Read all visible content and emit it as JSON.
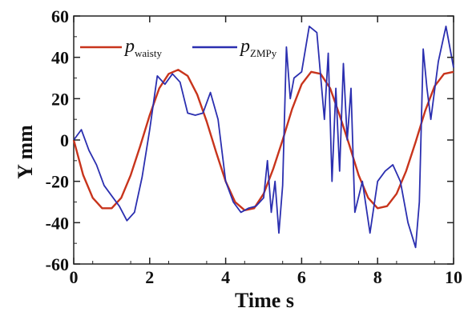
{
  "chart_data": {
    "type": "line",
    "xlabel": "Time  s",
    "ylabel": "Y  mm",
    "xlim": [
      0,
      10
    ],
    "ylim": [
      -60,
      60
    ],
    "xticks": [
      "0",
      "2",
      "4",
      "6",
      "8",
      "10"
    ],
    "yticks": [
      "60",
      "40",
      "20",
      "0",
      "-20",
      "-40",
      "-60"
    ],
    "grid": false,
    "legend_position": "top-left",
    "legend": [
      {
        "main": "p",
        "sub": "waisty",
        "color": "#c8341c"
      },
      {
        "main": "p",
        "sub": "ZMPy",
        "color": "#2b2fb0"
      }
    ],
    "series": [
      {
        "name": "p waisty",
        "color": "#c8341c",
        "x": [
          0,
          0.25,
          0.5,
          0.75,
          1.0,
          1.25,
          1.5,
          1.75,
          2.0,
          2.25,
          2.5,
          2.75,
          3.0,
          3.25,
          3.5,
          3.75,
          4.0,
          4.25,
          4.5,
          4.75,
          5.0,
          5.25,
          5.5,
          5.75,
          6.0,
          6.25,
          6.5,
          6.75,
          7.0,
          7.25,
          7.5,
          7.75,
          8.0,
          8.25,
          8.5,
          8.75,
          9.0,
          9.25,
          9.5,
          9.75,
          10.0
        ],
        "y": [
          0,
          -17,
          -28,
          -33,
          -33,
          -28,
          -17,
          -3,
          12,
          25,
          32,
          34,
          31,
          22,
          9,
          -6,
          -20,
          -30,
          -34,
          -33,
          -26,
          -14,
          0,
          15,
          27,
          33,
          32,
          25,
          12,
          -2,
          -17,
          -28,
          -33,
          -32,
          -26,
          -15,
          -1,
          14,
          26,
          32,
          33
        ]
      },
      {
        "name": "p ZMPy",
        "color": "#2b2fb0",
        "x": [
          0,
          0.2,
          0.4,
          0.6,
          0.8,
          1.0,
          1.2,
          1.4,
          1.6,
          1.8,
          2.0,
          2.2,
          2.4,
          2.6,
          2.8,
          3.0,
          3.2,
          3.4,
          3.6,
          3.8,
          4.0,
          4.2,
          4.4,
          4.6,
          4.8,
          5.0,
          5.1,
          5.2,
          5.3,
          5.4,
          5.5,
          5.6,
          5.7,
          5.8,
          6.0,
          6.2,
          6.4,
          6.6,
          6.7,
          6.8,
          6.9,
          7.0,
          7.1,
          7.2,
          7.3,
          7.4,
          7.6,
          7.8,
          8.0,
          8.2,
          8.4,
          8.6,
          8.8,
          9.0,
          9.1,
          9.2,
          9.3,
          9.4,
          9.6,
          9.8,
          10.0
        ],
        "y": [
          0,
          5,
          -5,
          -12,
          -22,
          -27,
          -32,
          -39,
          -35,
          -18,
          5,
          31,
          27,
          32,
          28,
          13,
          12,
          13,
          23,
          10,
          -20,
          -30,
          -35,
          -33,
          -32,
          -28,
          -10,
          -35,
          -20,
          -45,
          -22,
          45,
          20,
          30,
          33,
          55,
          52,
          10,
          42,
          -20,
          25,
          -15,
          37,
          0,
          25,
          -35,
          -20,
          -45,
          -20,
          -15,
          -12,
          -20,
          -40,
          -52,
          -30,
          44,
          25,
          10,
          38,
          55,
          35
        ]
      }
    ]
  }
}
